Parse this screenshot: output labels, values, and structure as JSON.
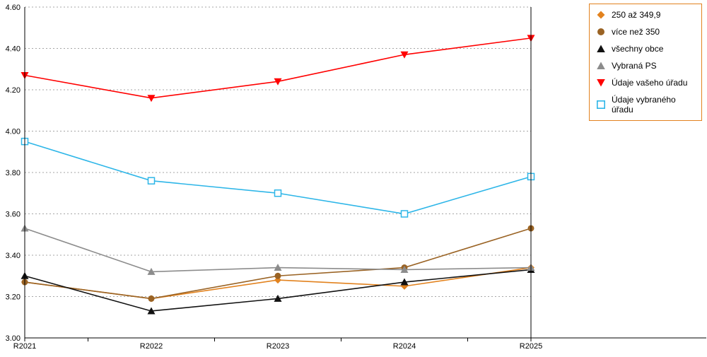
{
  "chart_data": {
    "type": "line",
    "title": "",
    "xlabel": "",
    "ylabel": "",
    "categories": [
      "R2021",
      "R2022",
      "R2023",
      "R2024",
      "R2025"
    ],
    "series": [
      {
        "name": "250 až 349,9",
        "marker": "diamond",
        "color": "#e2821e",
        "values": [
          3.27,
          3.19,
          3.28,
          3.25,
          3.34
        ]
      },
      {
        "name": "více než 350",
        "marker": "circle",
        "color": "#9a6324",
        "values": [
          3.27,
          3.19,
          3.3,
          3.34,
          3.53
        ]
      },
      {
        "name": "všechny obce",
        "marker": "triangle-up",
        "color": "#111111",
        "values": [
          3.3,
          3.13,
          3.19,
          3.27,
          3.33
        ]
      },
      {
        "name": "Vybraná PS",
        "marker": "triangle-up",
        "color": "#8c8c8c",
        "values": [
          3.53,
          3.32,
          3.34,
          3.33,
          3.34
        ]
      },
      {
        "name": "Údaje vašeho úřadu",
        "marker": "triangle-down",
        "color": "#ff0000",
        "values": [
          4.27,
          4.16,
          4.24,
          4.37,
          4.45
        ]
      },
      {
        "name": "Údaje vybraného úřadu",
        "marker": "square-open",
        "color": "#2eb6e8",
        "values": [
          3.95,
          3.76,
          3.7,
          3.6,
          3.78
        ]
      }
    ],
    "ylim": [
      3.0,
      4.6
    ],
    "ytick_step": 0.2,
    "ytick_decimals": 2,
    "grid": true,
    "legend_position": "right"
  },
  "colors": {
    "axis": "#000000",
    "grid": "#a6a6a6",
    "legend_border": "#e2821e",
    "background": "#ffffff"
  }
}
